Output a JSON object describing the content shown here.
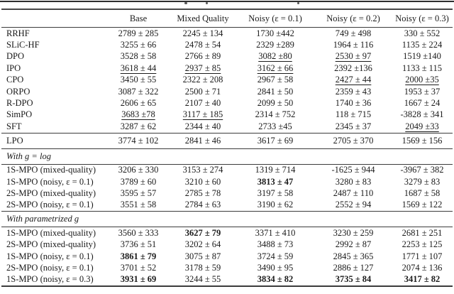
{
  "colors": {
    "text": "#1a1a1a",
    "rule": "#3c3c3c",
    "background": "#ffffff"
  },
  "table": {
    "columns": [
      "",
      "Base",
      "Mixed Quality",
      "Noisy (ε = 0.1)",
      "Noisy (ε = 0.2)",
      "Noisy (ε = 0.3)"
    ],
    "sections": [
      {
        "header": null,
        "rows": [
          {
            "method": "RRHF",
            "cells": [
              {
                "text": "2789 ± 285"
              },
              {
                "text": "2245 ± 134"
              },
              {
                "text": "1730 ±442"
              },
              {
                "text": "749 ± 498"
              },
              {
                "text": "330 ± 552"
              }
            ]
          },
          {
            "method": "SLiC-HF",
            "cells": [
              {
                "text": "3255 ± 66"
              },
              {
                "text": "2478 ± 54"
              },
              {
                "text": "2329 ±289"
              },
              {
                "text": "1964 ± 116"
              },
              {
                "text": "1135 ± 224"
              }
            ]
          },
          {
            "method": "DPO",
            "cells": [
              {
                "text": "3528 ± 58"
              },
              {
                "text": "2766 ± 89"
              },
              {
                "text": "3082 ±80",
                "underline": true
              },
              {
                "text": "2530 ± 97",
                "underline": true
              },
              {
                "text": "1519 ±140"
              }
            ]
          },
          {
            "method": "IPO",
            "cells": [
              {
                "text": "3618 ± 44",
                "underline": true
              },
              {
                "text": "2937 ± 85",
                "underline": true
              },
              {
                "text": "3162 ± 66",
                "underline": true
              },
              {
                "text": "2392 ±136"
              },
              {
                "text": "1133 ± 115"
              }
            ]
          },
          {
            "method": "CPO",
            "cells": [
              {
                "text": "3450 ± 55"
              },
              {
                "text": "2322 ± 208"
              },
              {
                "text": "2967 ± 58"
              },
              {
                "text": "2427 ± 44",
                "underline": true
              },
              {
                "text": "2000 ±35",
                "underline": true
              }
            ]
          },
          {
            "method": "ORPO",
            "cells": [
              {
                "text": "3087 ± 322"
              },
              {
                "text": "2500 ± 71"
              },
              {
                "text": "2841 ± 50"
              },
              {
                "text": "2359 ± 43"
              },
              {
                "text": "1953 ± 37"
              }
            ]
          },
          {
            "method": "R-DPO",
            "cells": [
              {
                "text": "2606 ± 65"
              },
              {
                "text": "2107 ± 40"
              },
              {
                "text": "2099 ± 50"
              },
              {
                "text": "1740 ± 36"
              },
              {
                "text": "1667 ± 24"
              }
            ]
          },
          {
            "method": "SimPO",
            "cells": [
              {
                "text": "3683 ±78",
                "underline": true
              },
              {
                "text": "3117 ± 185",
                "underline": true
              },
              {
                "text": "2314 ± 752"
              },
              {
                "text": "118 ± 715"
              },
              {
                "text": "-3828 ± 341"
              }
            ]
          },
          {
            "method": "SFT",
            "cells": [
              {
                "text": "3287 ± 62"
              },
              {
                "text": "2344 ± 40"
              },
              {
                "text": "2733 ±45"
              },
              {
                "text": "2345 ± 37"
              },
              {
                "text": "2049 ±33",
                "underline": true
              }
            ]
          }
        ]
      },
      {
        "header": null,
        "rows": [
          {
            "method": "LPO",
            "cells": [
              {
                "text": "3774 ± 102"
              },
              {
                "text": "2841 ± 46"
              },
              {
                "text": "3617 ± 69"
              },
              {
                "text": "2705 ± 370"
              },
              {
                "text": "1569 ± 156"
              }
            ]
          }
        ]
      },
      {
        "header": "With g = log",
        "rows": [
          {
            "method": "1S-MPO (mixed-quality)",
            "cells": [
              {
                "text": "3206 ± 330"
              },
              {
                "text": "3153 ± 274"
              },
              {
                "text": "1319 ± 714"
              },
              {
                "text": "-1625 ± 944"
              },
              {
                "text": "-3967 ± 382"
              }
            ]
          },
          {
            "method": "1S-MPO (noisy, ε = 0.1)",
            "cells": [
              {
                "text": "3789 ± 60"
              },
              {
                "text": "3210 ± 60"
              },
              {
                "text": "3813 ± 47",
                "bold": true
              },
              {
                "text": "3280 ± 83"
              },
              {
                "text": "3279 ± 83"
              }
            ]
          },
          {
            "method": "2S-MPO (mixed-quality)",
            "cells": [
              {
                "text": "3595 ± 57"
              },
              {
                "text": "2785 ± 78"
              },
              {
                "text": "3197 ± 58"
              },
              {
                "text": "2487 ± 110"
              },
              {
                "text": "1687 ± 58"
              }
            ]
          },
          {
            "method": "2S-MPO (noisy, ε = 0.1)",
            "cells": [
              {
                "text": "3551 ± 58"
              },
              {
                "text": "2784 ± 63"
              },
              {
                "text": "3190 ± 62"
              },
              {
                "text": "2552 ± 94"
              },
              {
                "text": "1569 ± 122"
              }
            ]
          }
        ]
      },
      {
        "header": "With parametrized g",
        "rows": [
          {
            "method": "1S-MPO (mixed-quality)",
            "cells": [
              {
                "text": "3560 ± 333"
              },
              {
                "text": "3627 ± 79",
                "bold": true
              },
              {
                "text": "3371 ± 410"
              },
              {
                "text": "3230 ± 259"
              },
              {
                "text": "2681 ± 251"
              }
            ]
          },
          {
            "method": "2S-MPO (mixed-quality)",
            "cells": [
              {
                "text": "3736 ± 51"
              },
              {
                "text": "3202 ± 64"
              },
              {
                "text": "3488 ± 73"
              },
              {
                "text": "2992 ± 87"
              },
              {
                "text": "2253 ± 125"
              }
            ]
          },
          {
            "method": "1S-MPO (noisy, ε = 0.1)",
            "cells": [
              {
                "text": "3861 ± 79",
                "bold": true
              },
              {
                "text": "3075 ± 87"
              },
              {
                "text": "3724 ± 59"
              },
              {
                "text": "2845 ± 365"
              },
              {
                "text": "1771 ± 107"
              }
            ]
          },
          {
            "method": "2S-MPO (noisy, ε = 0.1)",
            "cells": [
              {
                "text": "3701 ± 52"
              },
              {
                "text": "3178 ± 59"
              },
              {
                "text": "3490 ± 95"
              },
              {
                "text": "2886 ± 127"
              },
              {
                "text": "2074 ± 136"
              }
            ]
          },
          {
            "method": "1S-MPO (noisy, ε = 0.3)",
            "cells": [
              {
                "text": "3931 ± 69",
                "bold": true
              },
              {
                "text": "3244 ± 55"
              },
              {
                "text": "3834 ± 82",
                "bold": true
              },
              {
                "text": "3735 ± 84",
                "bold": true
              },
              {
                "text": "3417 ± 82",
                "bold": true
              }
            ]
          }
        ]
      }
    ]
  }
}
